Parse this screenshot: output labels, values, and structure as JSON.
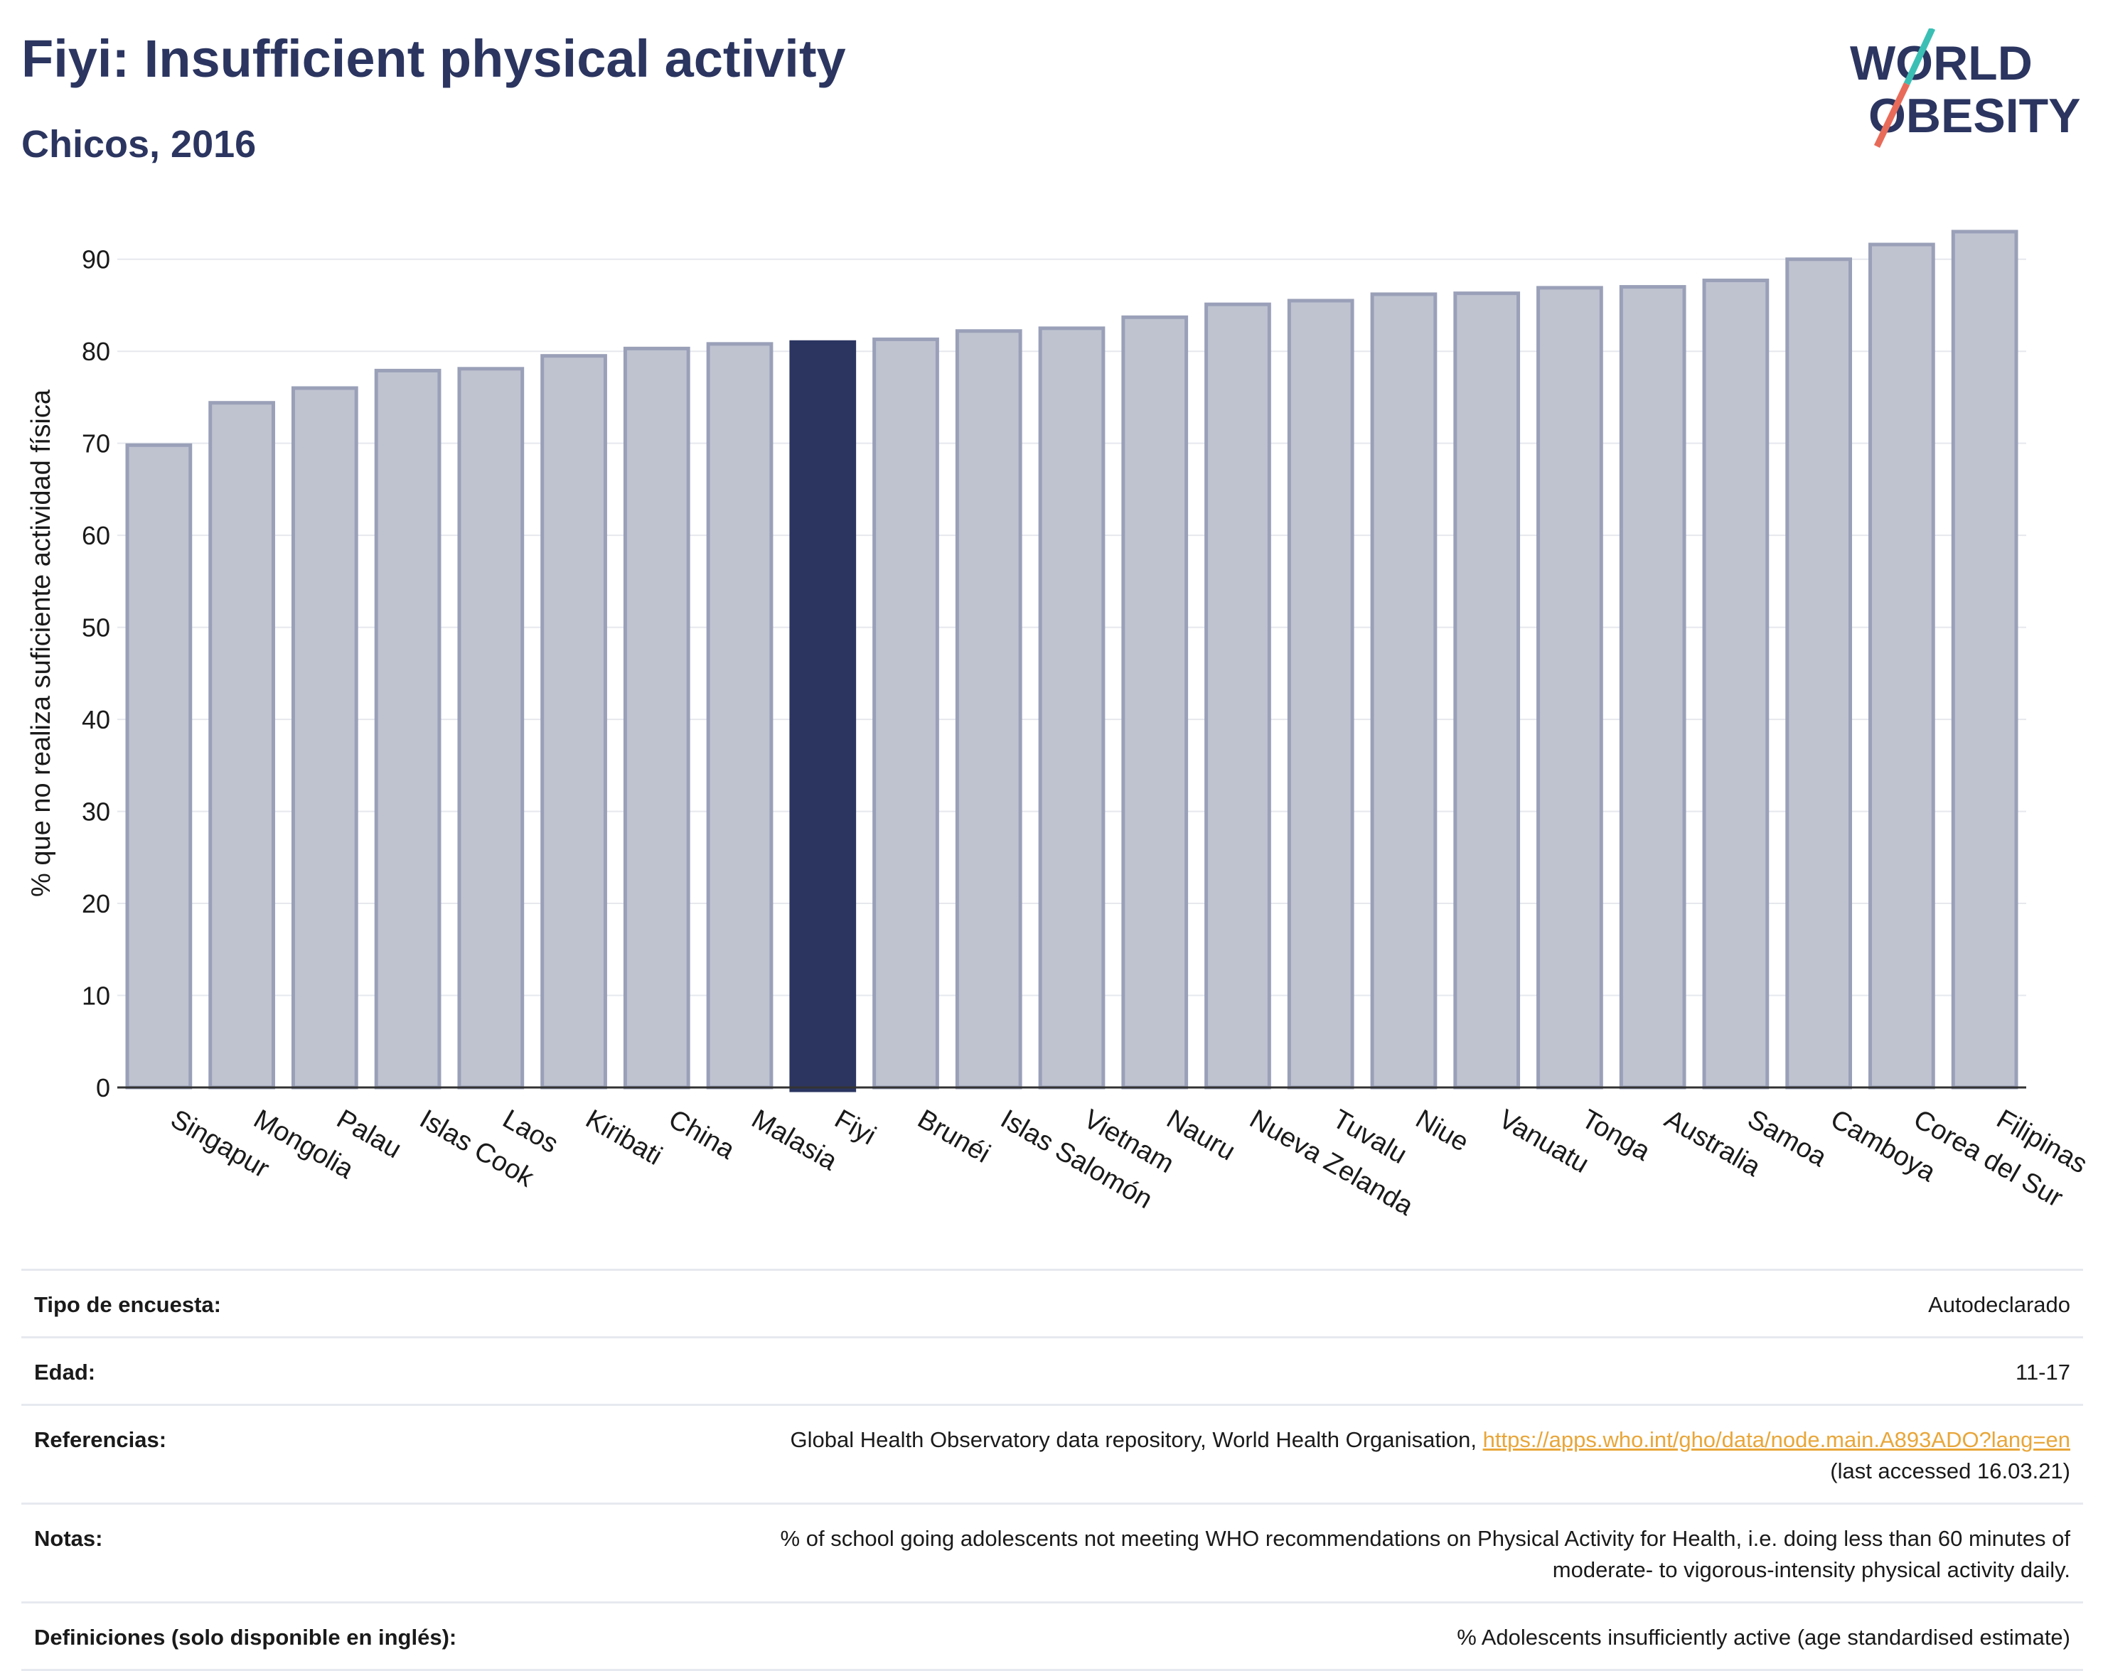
{
  "header": {
    "title": "Fiyi: Insufficient physical activity",
    "subtitle": "Chicos, 2016"
  },
  "logo": {
    "line1": "WORLD",
    "line2": "OBESITY"
  },
  "colors": {
    "bar": "#bfc3d0",
    "bar_border": "#9aa0b8",
    "highlight": "#2b3560",
    "title": "#2b3560",
    "link": "#e8a63a"
  },
  "chart_data": {
    "type": "bar",
    "ylabel": "% que no realiza suficiente actividad física",
    "ylim": [
      0,
      95
    ],
    "yticks": [
      0,
      10,
      20,
      30,
      40,
      50,
      60,
      70,
      80,
      90
    ],
    "grid": true,
    "highlight": "Fiyi",
    "categories": [
      "Singapur",
      "Mongolia",
      "Palau",
      "Islas Cook",
      "Laos",
      "Kiribati",
      "China",
      "Malasia",
      "Fiyi",
      "Brunéi",
      "Islas Salomón",
      "Vietnam",
      "Nauru",
      "Nueva Zelanda",
      "Tuvalu",
      "Niue",
      "Vanuatu",
      "Tonga",
      "Australia",
      "Samoa",
      "Camboya",
      "Corea del Sur",
      "Filipinas"
    ],
    "values": [
      69.8,
      74.4,
      76.0,
      77.9,
      78.1,
      79.5,
      80.3,
      80.8,
      81.0,
      81.3,
      82.2,
      82.5,
      83.7,
      85.1,
      85.5,
      86.2,
      86.3,
      86.9,
      87.0,
      87.7,
      90.0,
      91.6,
      93.0
    ]
  },
  "info": {
    "survey_label": "Tipo de encuesta:",
    "survey_value": "Autodeclarado",
    "age_label": "Edad:",
    "age_value": "11-17",
    "refs_label": "Referencias:",
    "refs_text": "Global Health Observatory data repository, World Health Organisation,",
    "refs_link": "https://apps.who.int/gho/data/node.main.A893ADO?lang=en",
    "refs_accessed": "(last accessed 16.03.21)",
    "notes_label": "Notas:",
    "notes_line1": "% of school going adolescents not meeting WHO recommendations on Physical Activity for Health, i.e. doing less than 60 minutes of",
    "notes_line2": "moderate- to vigorous-intensity physical activity daily.",
    "defs_label": "Definiciones (solo disponible en inglés):",
    "defs_value": "% Adolescents insufficiently active (age standardised estimate)"
  }
}
